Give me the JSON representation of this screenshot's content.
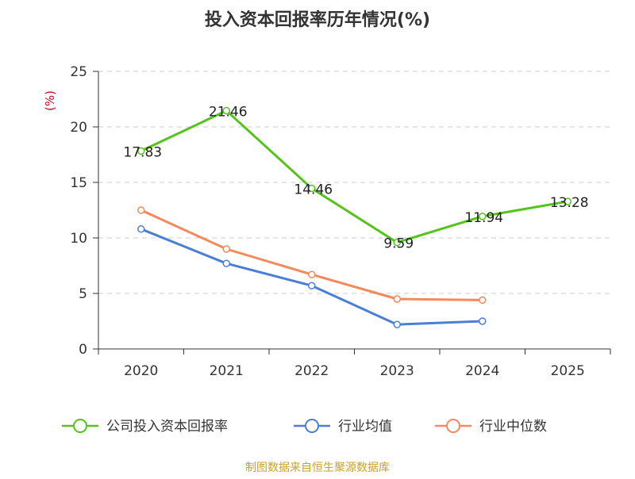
{
  "chart_data": {
    "type": "line",
    "title": "投入资本回报率历年情况(%)",
    "ylabel": "(%)",
    "xlabel": "",
    "categories": [
      "2020",
      "2021",
      "2022",
      "2023",
      "2024",
      "2025"
    ],
    "ylim": [
      0,
      25
    ],
    "yticks": [
      0,
      5,
      10,
      15,
      20,
      25
    ],
    "grid": true,
    "legend_position": "bottom",
    "series": [
      {
        "name": "公司投入资本回报率",
        "color": "#52c41a",
        "values": [
          17.83,
          21.46,
          14.46,
          9.59,
          11.94,
          13.28
        ],
        "labels": [
          "17.83",
          "21.46",
          "14.46",
          "9.59",
          "11.94",
          "13.28"
        ],
        "show_labels": true
      },
      {
        "name": "行业均值",
        "color": "#4a7fd6",
        "values": [
          10.8,
          7.7,
          5.7,
          2.2,
          2.5,
          null
        ],
        "show_labels": false
      },
      {
        "name": "行业中位数",
        "color": "#f5895b",
        "values": [
          12.5,
          9.0,
          6.7,
          4.5,
          4.4,
          null
        ],
        "show_labels": false
      }
    ],
    "source": "制图数据来自恒生聚源数据库"
  }
}
